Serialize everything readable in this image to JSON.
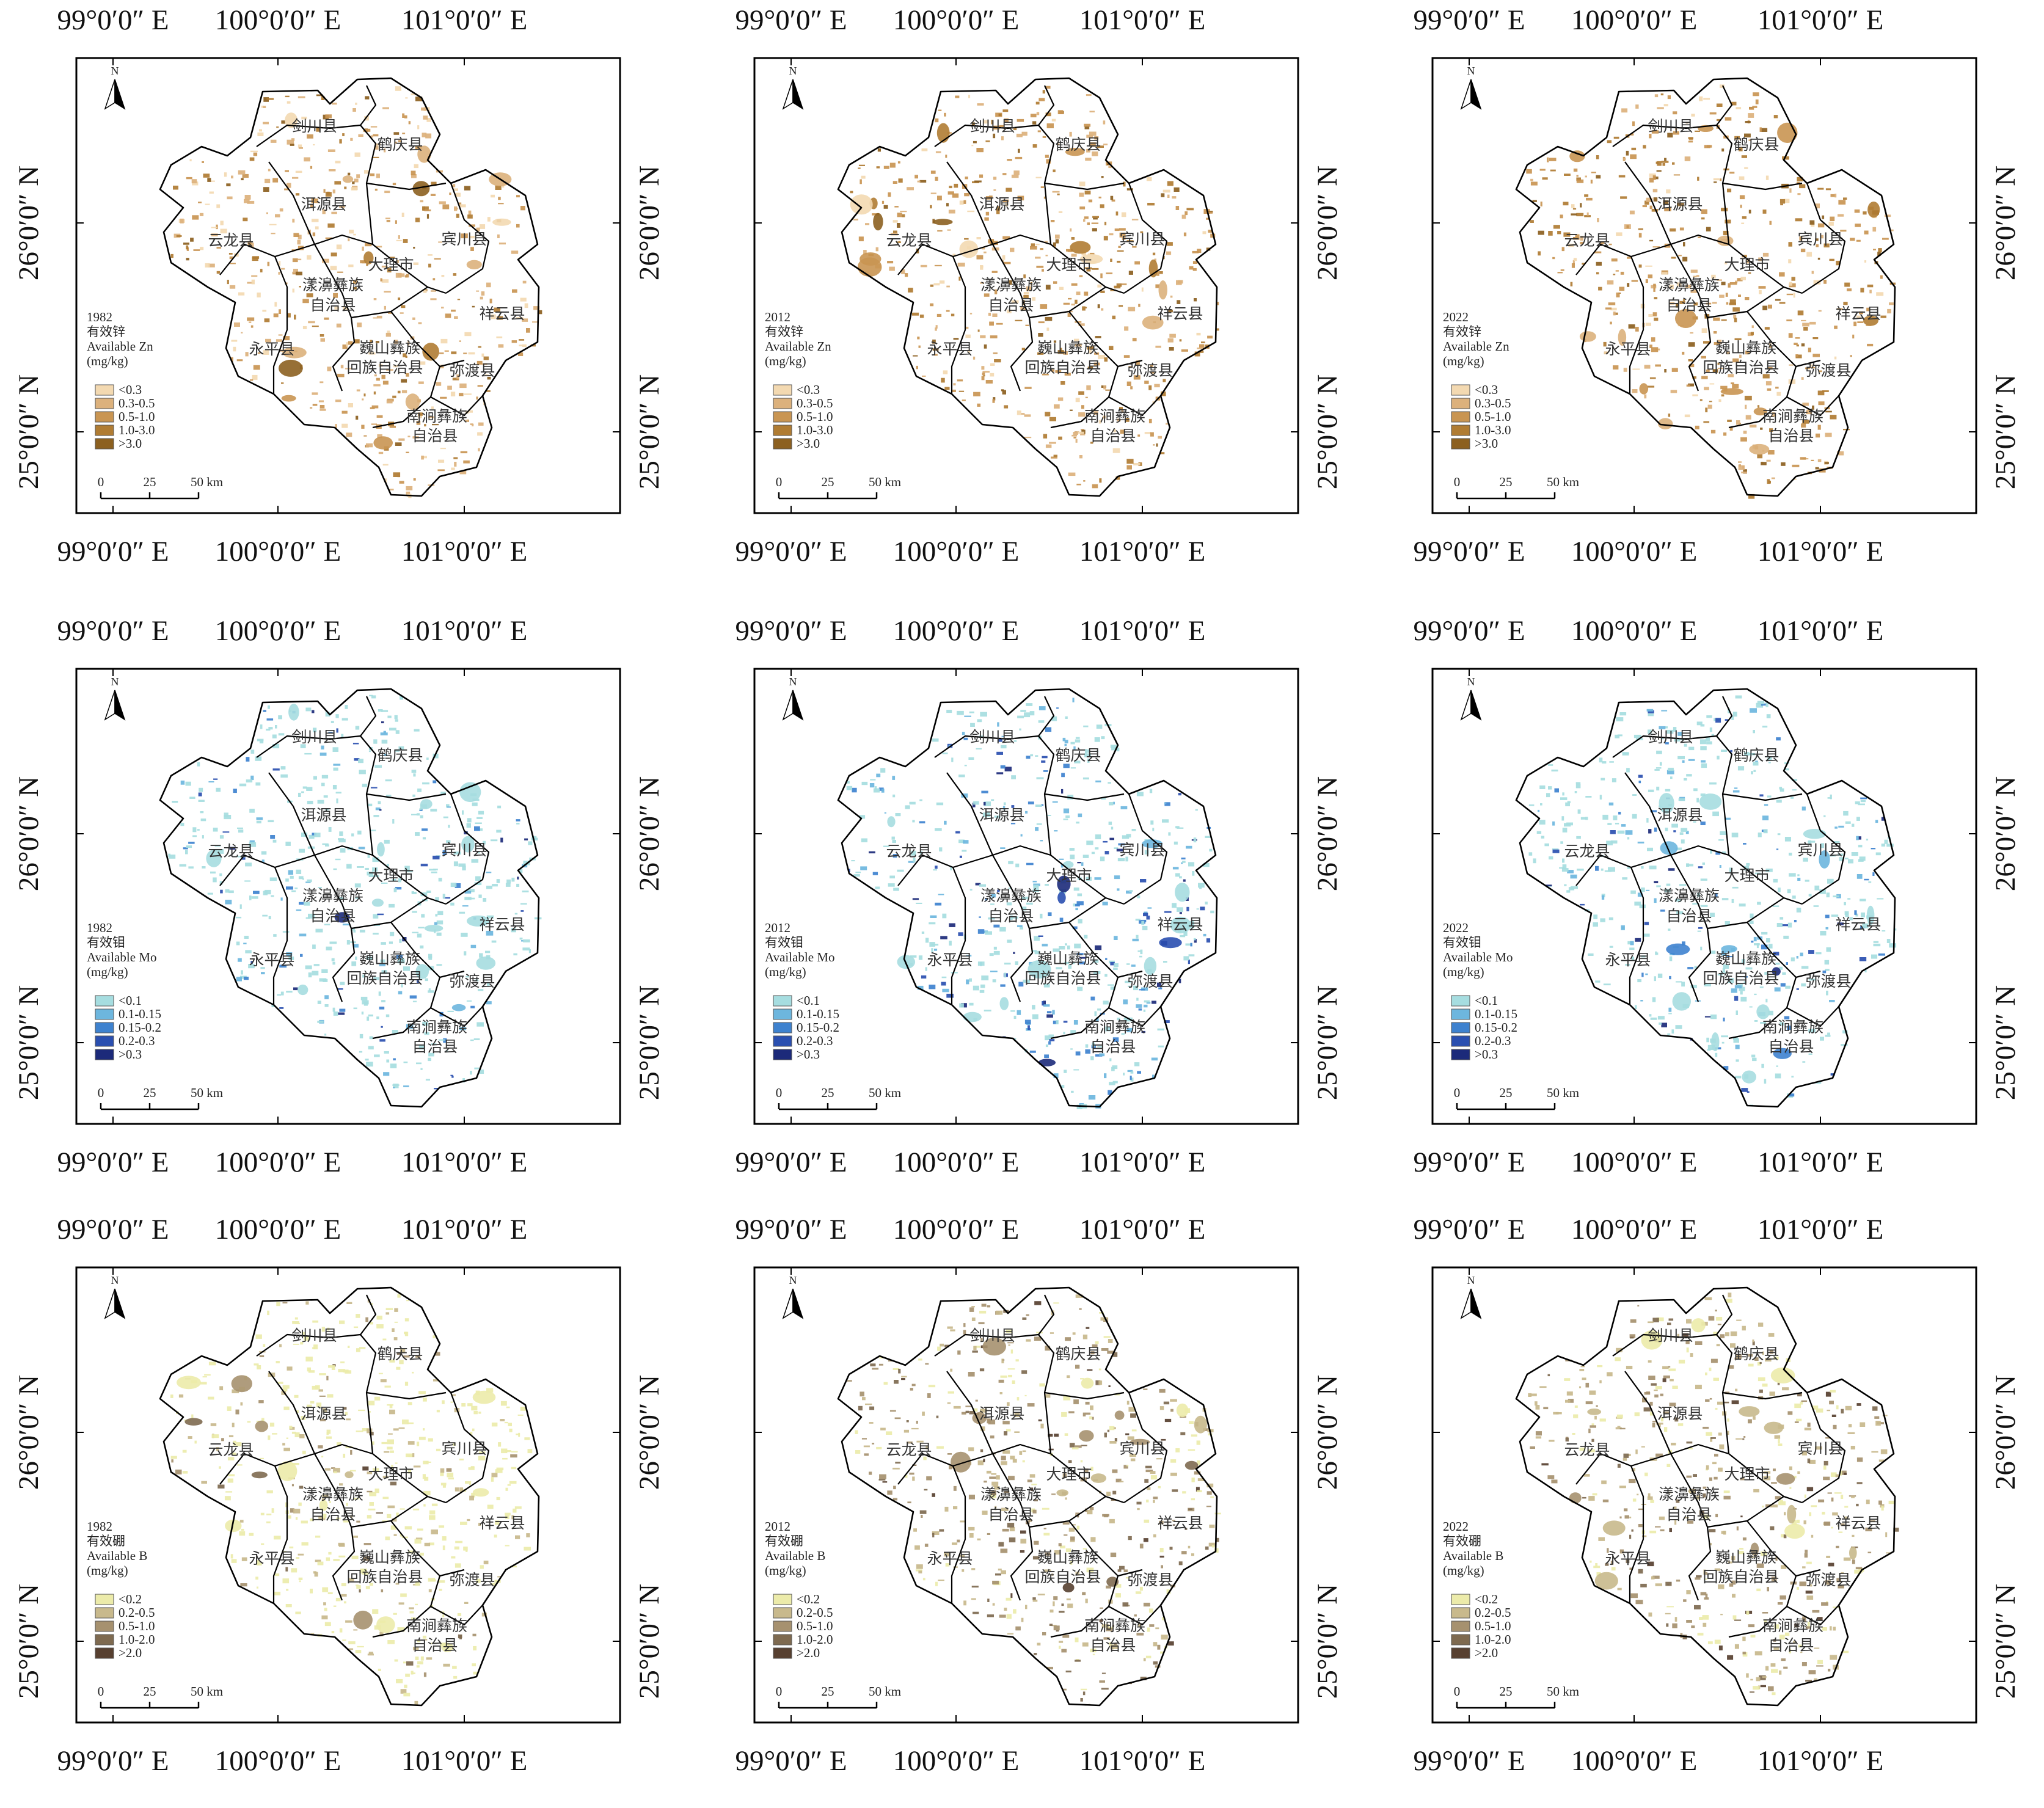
{
  "lon_ticks": [
    "99°0′0″ E",
    "100°0′0″ E",
    "101°0′0″ E"
  ],
  "lat_ticks": [
    "26°0′0″ N",
    "25°0′0″ N"
  ],
  "north_label": "N",
  "scale_labels": [
    "0",
    "25",
    "50 km"
  ],
  "unit": "(mg/kg)",
  "counties": [
    {
      "id": "jianchuan",
      "name": "剑川县"
    },
    {
      "id": "heqing",
      "name": "鹤庆县"
    },
    {
      "id": "eryuan",
      "name": "洱源县"
    },
    {
      "id": "yunlong",
      "name": "云龙县"
    },
    {
      "id": "binchuan",
      "name": "宾川县"
    },
    {
      "id": "dali",
      "name": "大理市"
    },
    {
      "id": "yangbi1",
      "name": "漾濞彝族"
    },
    {
      "id": "yangbi2",
      "name": "自治县"
    },
    {
      "id": "xiangyun",
      "name": "祥云县"
    },
    {
      "id": "yongping",
      "name": "永平县"
    },
    {
      "id": "weishan1",
      "name": "巍山彝族"
    },
    {
      "id": "weishan2",
      "name": "回族自治县"
    },
    {
      "id": "midu",
      "name": "弥渡县"
    },
    {
      "id": "nanjian1",
      "name": "南涧彝族"
    },
    {
      "id": "nanjian2",
      "name": "自治县"
    }
  ],
  "elements": [
    {
      "key": "zn",
      "cn": "有效锌",
      "en": "Available Zn",
      "classes": [
        "<0.3",
        "0.3-0.5",
        "0.5-1.0",
        "1.0-3.0",
        ">3.0"
      ],
      "colors": [
        "#f3d9b1",
        "#dcb17c",
        "#c99552",
        "#b07c33",
        "#8c6020"
      ]
    },
    {
      "key": "mo",
      "cn": "有效钼",
      "en": "Available Mo",
      "classes": [
        "<0.1",
        "0.1-0.15",
        "0.15-0.2",
        "0.2-0.3",
        ">0.3"
      ],
      "colors": [
        "#a6dde0",
        "#6db6de",
        "#3e82cf",
        "#2a4fb0",
        "#1c2a7a"
      ]
    },
    {
      "key": "b",
      "cn": "有效硼",
      "en": "Available B",
      "classes": [
        "<0.2",
        "0.2-0.5",
        "0.5-1.0",
        "1.0-2.0",
        ">2.0"
      ],
      "colors": [
        "#ecebaa",
        "#c8b98c",
        "#a6916f",
        "#7e6a50",
        "#574030"
      ]
    }
  ],
  "years": [
    "1982",
    "2012",
    "2022"
  ],
  "panels": [
    {
      "element": 0,
      "year": 0,
      "levels": [
        0.22,
        0.3,
        0.26,
        0.16,
        0.06
      ]
    },
    {
      "element": 0,
      "year": 1,
      "levels": [
        0.1,
        0.22,
        0.34,
        0.24,
        0.1
      ]
    },
    {
      "element": 0,
      "year": 2,
      "levels": [
        0.08,
        0.18,
        0.34,
        0.28,
        0.12
      ]
    },
    {
      "element": 1,
      "year": 0,
      "levels": [
        0.78,
        0.1,
        0.05,
        0.04,
        0.03
      ]
    },
    {
      "element": 1,
      "year": 1,
      "levels": [
        0.55,
        0.18,
        0.12,
        0.09,
        0.06
      ]
    },
    {
      "element": 1,
      "year": 2,
      "levels": [
        0.7,
        0.14,
        0.08,
        0.05,
        0.03
      ]
    },
    {
      "element": 2,
      "year": 0,
      "levels": [
        0.7,
        0.2,
        0.06,
        0.03,
        0.01
      ]
    },
    {
      "element": 2,
      "year": 1,
      "levels": [
        0.18,
        0.34,
        0.28,
        0.15,
        0.05
      ]
    },
    {
      "element": 2,
      "year": 2,
      "levels": [
        0.24,
        0.34,
        0.26,
        0.12,
        0.04
      ]
    }
  ]
}
